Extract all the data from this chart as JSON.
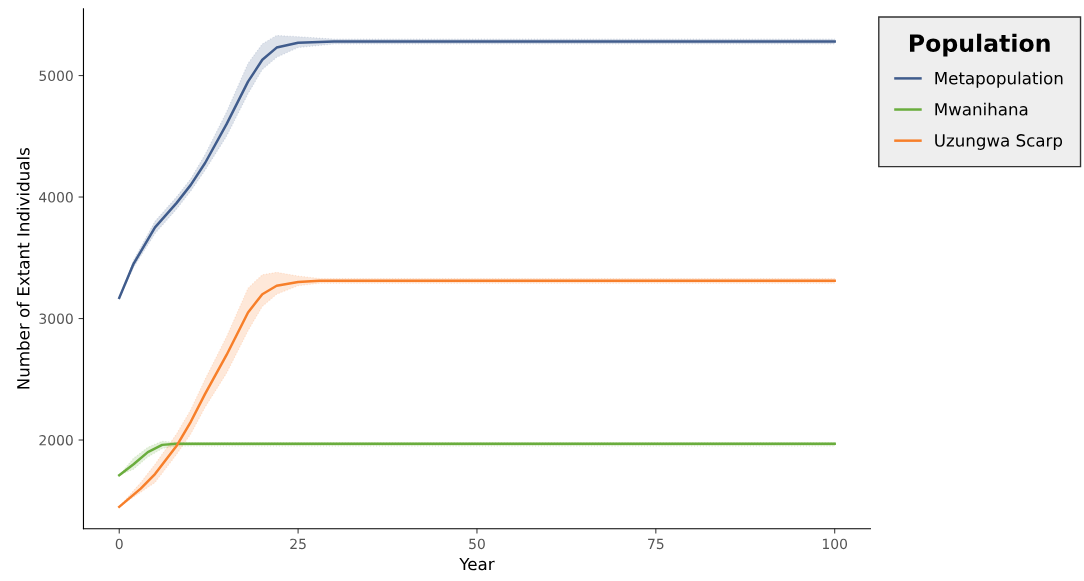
{
  "chart_data": {
    "type": "line",
    "xlabel": "Year",
    "ylabel": "Number of Extant Individuals",
    "legend_title": "Population",
    "legend": "right",
    "grid": false,
    "line_style": "solid",
    "marker": "none",
    "xlim": [
      -5,
      105
    ],
    "xticks": [
      0,
      25,
      50,
      75,
      100
    ],
    "ylim": [
      1270,
      5550
    ],
    "yticks": [
      2000,
      3000,
      4000,
      5000
    ],
    "series": [
      {
        "name": "Metapopulation",
        "color": "#405c8c",
        "x": [
          0,
          2,
          5,
          8,
          10,
          12,
          15,
          18,
          20,
          22,
          25,
          30,
          100
        ],
        "values": [
          3170,
          3450,
          3750,
          3950,
          4100,
          4280,
          4600,
          4950,
          5130,
          5230,
          5270,
          5280,
          5280
        ],
        "lower": [
          3170,
          3420,
          3700,
          3900,
          4050,
          4220,
          4500,
          4850,
          5050,
          5150,
          5230,
          5260,
          5260
        ],
        "upper": [
          3170,
          3480,
          3800,
          4000,
          4150,
          4350,
          4700,
          5100,
          5260,
          5330,
          5320,
          5300,
          5300
        ]
      },
      {
        "name": "Mwanihana",
        "color": "#6aad3d",
        "x": [
          0,
          2,
          4,
          6,
          8,
          10,
          100
        ],
        "values": [
          1710,
          1800,
          1900,
          1960,
          1970,
          1970,
          1970
        ],
        "lower": [
          1710,
          1760,
          1860,
          1930,
          1950,
          1950,
          1950
        ],
        "upper": [
          1710,
          1850,
          1940,
          1990,
          1980,
          1980,
          1980
        ]
      },
      {
        "name": "Uzungwa Scarp",
        "color": "#f77f2a",
        "x": [
          0,
          3,
          5,
          8,
          10,
          12,
          15,
          18,
          20,
          22,
          25,
          28,
          100
        ],
        "values": [
          1450,
          1600,
          1720,
          1950,
          2150,
          2380,
          2700,
          3050,
          3200,
          3270,
          3300,
          3310,
          3310
        ],
        "lower": [
          1450,
          1570,
          1650,
          1880,
          2050,
          2270,
          2550,
          2900,
          3100,
          3200,
          3270,
          3290,
          3290
        ],
        "upper": [
          1450,
          1650,
          1800,
          2050,
          2250,
          2500,
          2850,
          3250,
          3360,
          3380,
          3350,
          3330,
          3330
        ]
      }
    ]
  }
}
